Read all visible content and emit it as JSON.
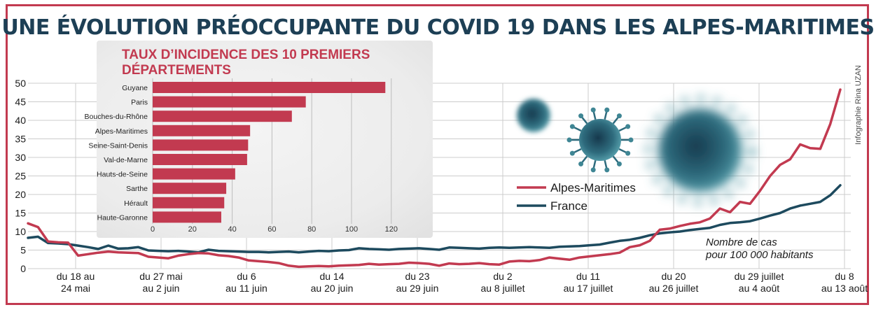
{
  "title": "UNE ÉVOLUTION PRÉOCCUPANTE DU COVID 19 DANS LES ALPES-MARITIMES",
  "credit": "Infographie Rina UZAN",
  "note_line1": "Nombre de cas",
  "note_line2": "pour 100 000 habitants",
  "colors": {
    "alpes": "#c23a50",
    "france": "#1d4a5e",
    "bar": "#c23a50",
    "title": "#1d3f55"
  },
  "chart_data": [
    {
      "type": "line",
      "title": "",
      "xlabel": "",
      "ylabel": "",
      "ylim": [
        0,
        50
      ],
      "yticks": [
        0,
        5,
        10,
        15,
        20,
        25,
        30,
        35,
        40,
        45,
        50
      ],
      "grid": true,
      "legend": "middle-right",
      "x_tick_labels": [
        [
          "du 18 au",
          "24 mai"
        ],
        [
          "du 27 mai",
          "au 2 juin"
        ],
        [
          "du 6",
          "au 11 juin"
        ],
        [
          "du 14",
          "au 20 juin"
        ],
        [
          "du 23",
          "au 29 juin"
        ],
        [
          "du 2",
          "au 8 juillet"
        ],
        [
          "du 11",
          "au 17 juillet"
        ],
        [
          "du 20",
          "au 26 juillet"
        ],
        [
          "du 29 juillet",
          "au 4 août"
        ],
        [
          "du 8",
          "au 13 août"
        ]
      ],
      "x_points": 82,
      "series": [
        {
          "name": "Alpes-Maritimes",
          "values": [
            12.2,
            11.2,
            7.3,
            7.1,
            7.0,
            3.5,
            3.9,
            4.3,
            4.6,
            4.4,
            4.3,
            4.2,
            3.2,
            3.0,
            2.8,
            3.5,
            3.9,
            4.2,
            4.1,
            3.6,
            3.4,
            3.0,
            2.2,
            2.0,
            1.8,
            1.5,
            0.8,
            0.5,
            0.6,
            0.7,
            0.6,
            0.8,
            0.9,
            1.0,
            1.3,
            1.1,
            1.2,
            1.3,
            1.6,
            1.5,
            1.3,
            0.8,
            1.4,
            1.2,
            1.3,
            1.5,
            1.2,
            1.1,
            1.9,
            2.1,
            2.0,
            2.3,
            3.0,
            2.7,
            2.4,
            3.0,
            3.3,
            3.6,
            3.9,
            4.3,
            5.8,
            6.3,
            7.5,
            10.5,
            10.8,
            11.5,
            12.1,
            12.5,
            13.5,
            16.2,
            15.2,
            18.0,
            17.5,
            21.0,
            25.0,
            28.0,
            29.5,
            33.5,
            32.5,
            32.3,
            39.0,
            48.3
          ]
        },
        {
          "name": "France",
          "values": [
            8.3,
            8.6,
            6.9,
            6.8,
            6.6,
            6.2,
            5.8,
            5.3,
            6.2,
            5.4,
            5.5,
            5.8,
            4.9,
            4.8,
            4.7,
            4.8,
            4.6,
            4.4,
            5.1,
            4.8,
            4.7,
            4.6,
            4.5,
            4.5,
            4.4,
            4.5,
            4.6,
            4.4,
            4.6,
            4.8,
            4.7,
            4.9,
            5.0,
            5.5,
            5.3,
            5.2,
            5.1,
            5.3,
            5.4,
            5.5,
            5.3,
            5.1,
            5.7,
            5.6,
            5.5,
            5.4,
            5.6,
            5.7,
            5.6,
            5.7,
            5.8,
            5.7,
            5.6,
            5.9,
            6.0,
            6.1,
            6.3,
            6.5,
            7.0,
            7.5,
            7.8,
            8.3,
            9.0,
            9.5,
            9.8,
            10.0,
            10.4,
            10.7,
            11.0,
            11.8,
            12.3,
            12.5,
            12.8,
            13.5,
            14.3,
            15.0,
            16.2,
            17.0,
            17.5,
            18.0,
            19.8,
            22.5
          ]
        }
      ]
    },
    {
      "type": "bar",
      "orientation": "horizontal",
      "title": "TAUX D’INCIDENCE DES 10 PREMIERS DÉPARTEMENTS",
      "title_line1": "TAUX D’INCIDENCE DES 10 PREMIERS",
      "title_line2": "DÉPARTEMENTS",
      "xlim": [
        0,
        120
      ],
      "xticks": [
        0,
        20,
        40,
        60,
        80,
        100,
        120
      ],
      "grid": true,
      "categories": [
        "Guyane",
        "Paris",
        "Bouches-du-Rhône",
        "Alpes-Maritimes",
        "Seine-Saint-Denis",
        "Val-de-Marne",
        "Hauts-de-Seine",
        "Sarthe",
        "Hérault",
        "Haute-Garonne"
      ],
      "values": [
        117,
        77,
        70,
        49,
        48,
        47.5,
        41.5,
        37,
        36,
        34.5
      ]
    }
  ]
}
